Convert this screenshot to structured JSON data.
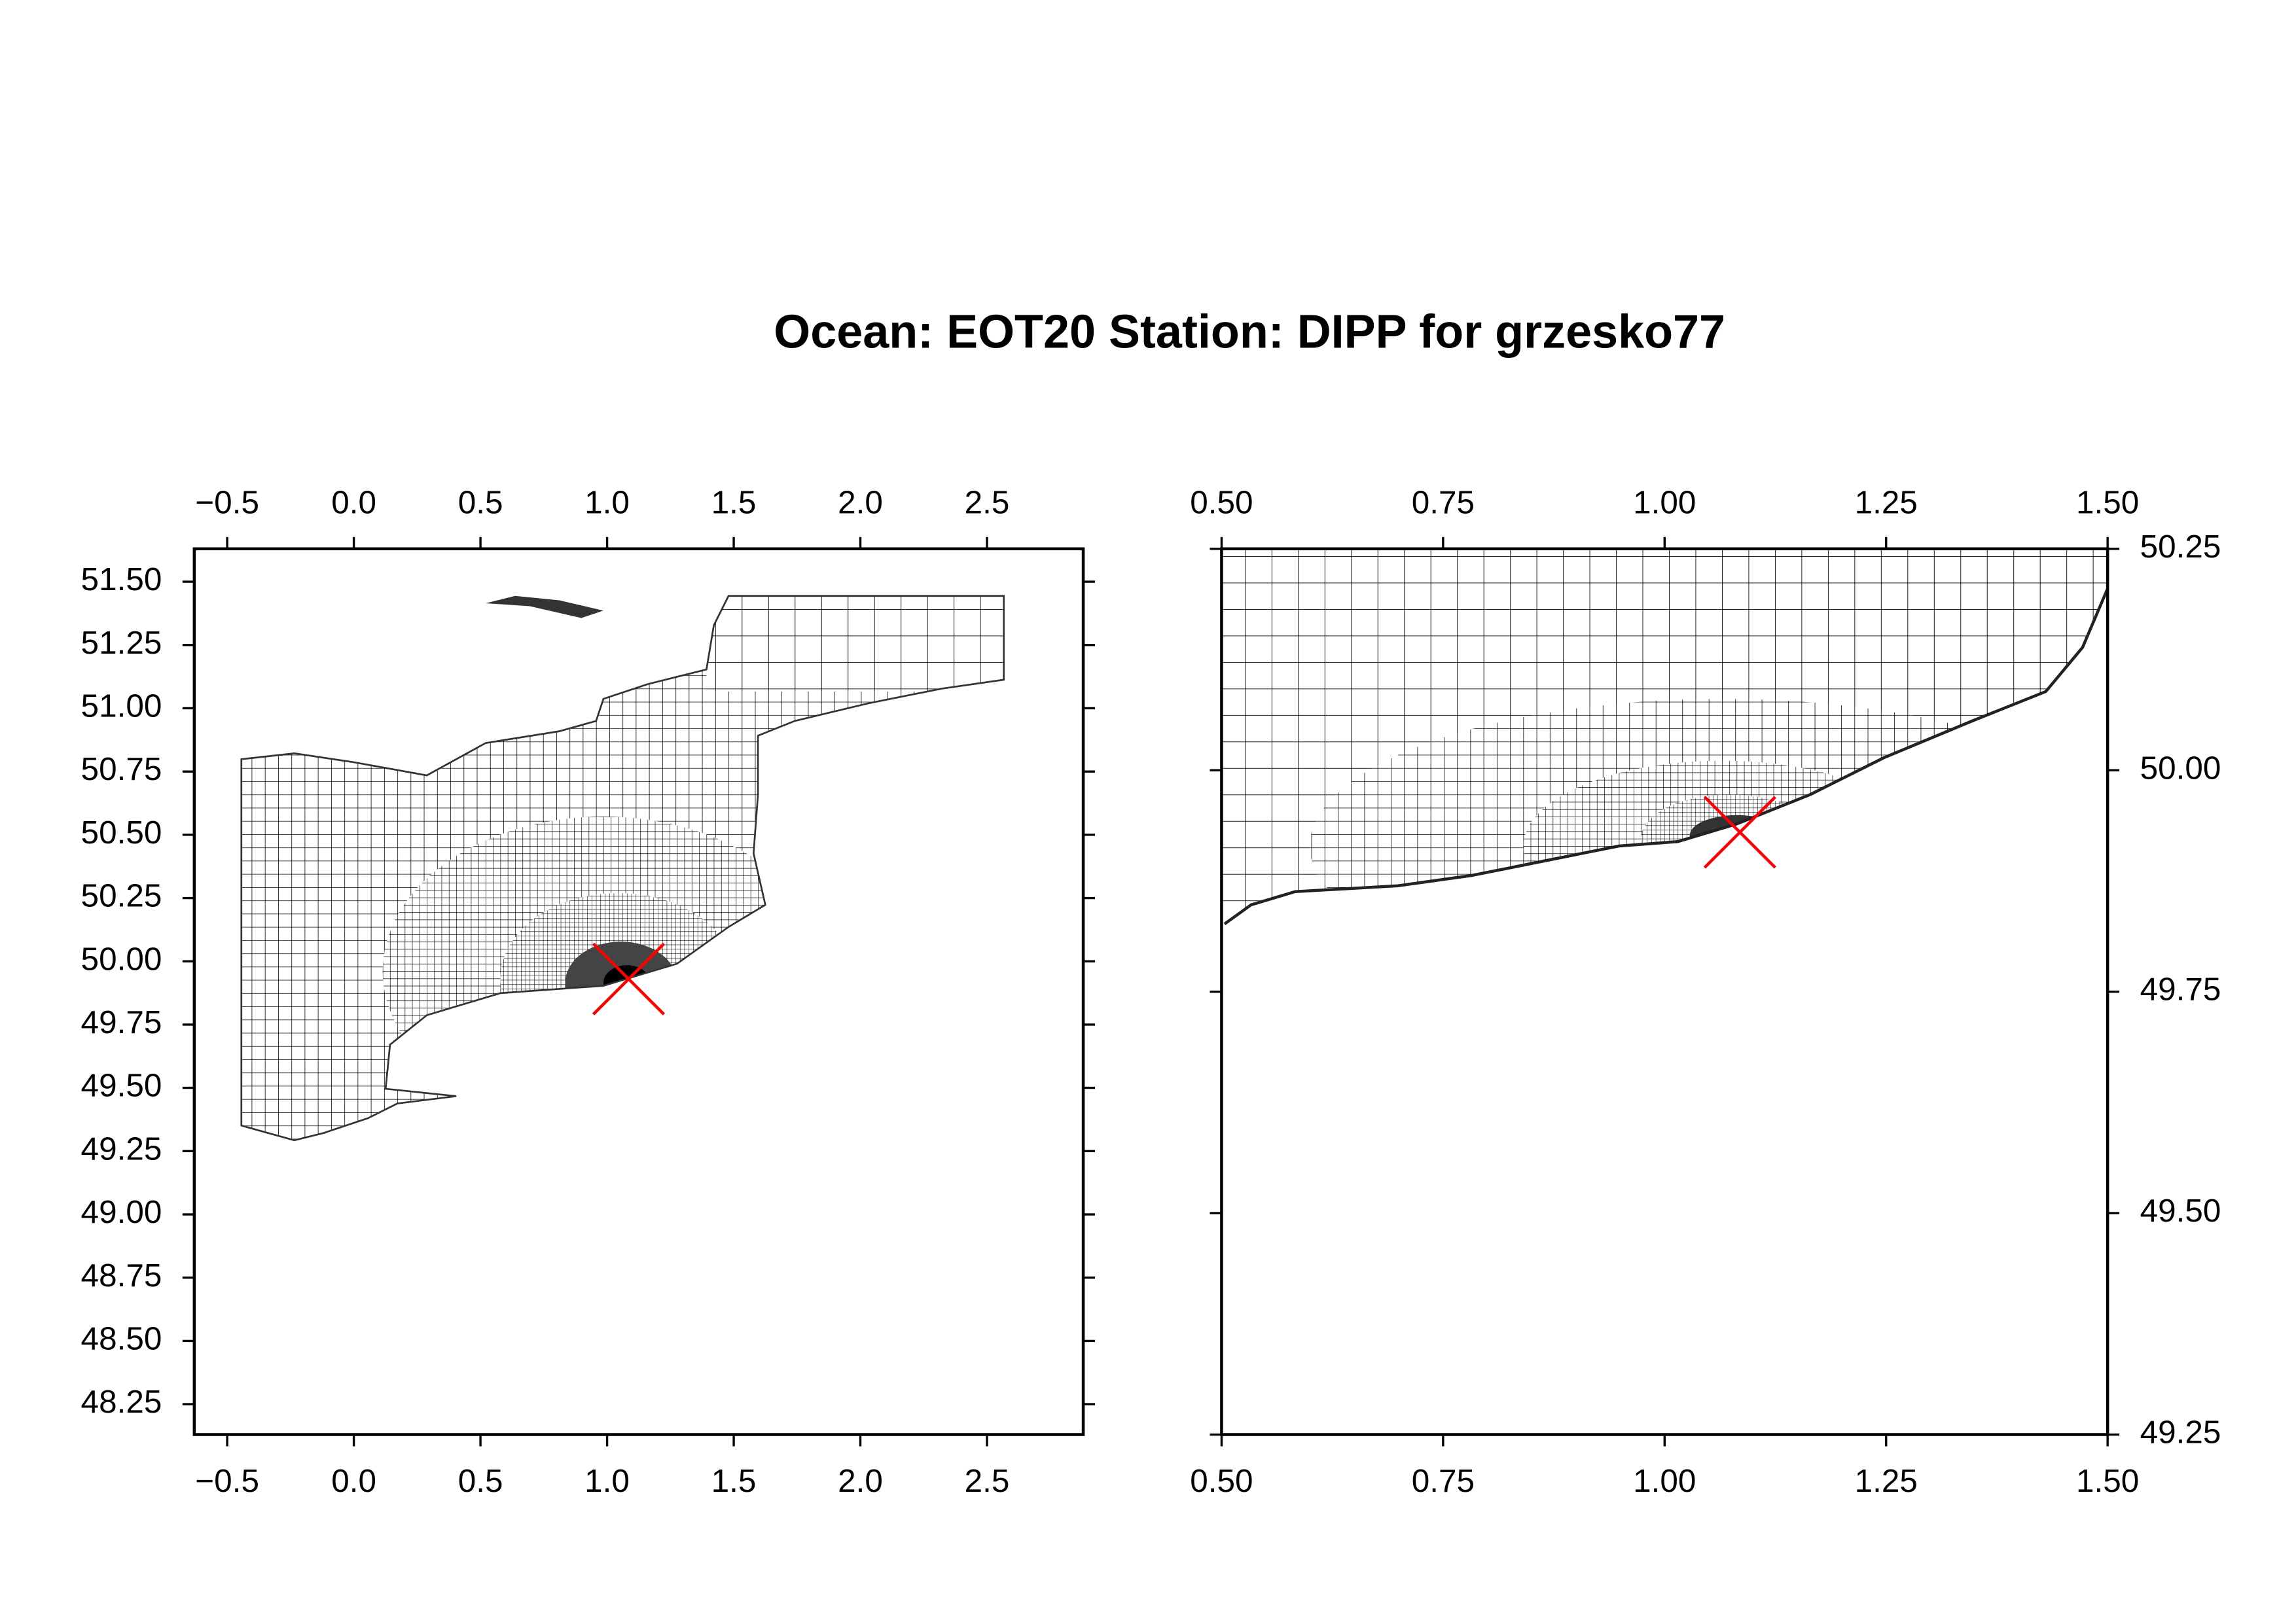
{
  "chart_data": [
    {
      "type": "map",
      "title": "Ocean: EOT20  Station: DIPP  for grzesko77",
      "xlim": [
        -0.63,
        2.88
      ],
      "ylim": [
        48.13,
        51.63
      ],
      "xticks": [
        {
          "value": -0.5,
          "label": "−0.5"
        },
        {
          "value": 0,
          "label": "0.0"
        },
        {
          "value": 0.5,
          "label": "0.5"
        },
        {
          "value": 1,
          "label": "1.0"
        },
        {
          "value": 1.5,
          "label": "1.5"
        },
        {
          "value": 2,
          "label": "2.0"
        },
        {
          "value": 2.5,
          "label": "2.5"
        }
      ],
      "yticks": [
        {
          "value": 48.25,
          "label": "48.25"
        },
        {
          "value": 48.5,
          "label": "48.50"
        },
        {
          "value": 48.75,
          "label": "48.75"
        },
        {
          "value": 49,
          "label": "49.00"
        },
        {
          "value": 49.25,
          "label": "49.25"
        },
        {
          "value": 49.5,
          "label": "49.50"
        },
        {
          "value": 49.75,
          "label": "49.75"
        },
        {
          "value": 50,
          "label": "50.00"
        },
        {
          "value": 50.25,
          "label": "50.25"
        },
        {
          "value": 50.5,
          "label": "50.50"
        },
        {
          "value": 50.75,
          "label": "50.75"
        },
        {
          "value": 51,
          "label": "51.00"
        },
        {
          "value": 51.25,
          "label": "51.25"
        },
        {
          "value": 51.5,
          "label": "51.50"
        }
      ],
      "y_axis_side": "left",
      "station": {
        "x": 1.085,
        "y": 49.93,
        "color": "#ff0000"
      }
    },
    {
      "type": "map",
      "xlim": [
        0.5,
        1.5
      ],
      "ylim": [
        49.25,
        50.25
      ],
      "xticks": [
        {
          "value": 0.5,
          "label": "0.50"
        },
        {
          "value": 0.75,
          "label": "0.75"
        },
        {
          "value": 1,
          "label": "1.00"
        },
        {
          "value": 1.25,
          "label": "1.25"
        },
        {
          "value": 1.5,
          "label": "1.50"
        }
      ],
      "yticks": [
        {
          "value": 49.25,
          "label": "49.25"
        },
        {
          "value": 49.5,
          "label": "49.50"
        },
        {
          "value": 49.75,
          "label": "49.75"
        },
        {
          "value": 50,
          "label": "50.00"
        },
        {
          "value": 50.25,
          "label": "50.25"
        }
      ],
      "y_axis_side": "right",
      "station": {
        "x": 1.085,
        "y": 49.93,
        "color": "#ff0000"
      }
    }
  ]
}
